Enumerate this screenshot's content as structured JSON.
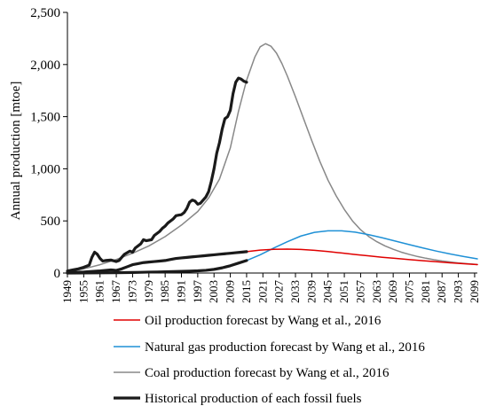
{
  "chart_data": {
    "type": "line",
    "title": "",
    "ylabel": "Annual production [mtoe]",
    "xlabel": "",
    "ylim": [
      0,
      2500
    ],
    "xlim": [
      1949,
      2100
    ],
    "y_ticks": [
      0,
      500,
      1000,
      1500,
      2000,
      2500
    ],
    "y_tick_labels": [
      "0",
      "500",
      "1,000",
      "1,500",
      "2,000",
      "2,500"
    ],
    "x_tick_labels": [
      "1949",
      "1955",
      "1961",
      "1967",
      "1973",
      "1979",
      "1985",
      "1991",
      "1997",
      "2003",
      "2009",
      "2015",
      "2021",
      "2027",
      "2033",
      "2039",
      "2045",
      "2051",
      "2057",
      "2063",
      "2069",
      "2075",
      "2081",
      "2087",
      "2093",
      "2099"
    ],
    "grid": false,
    "legend_position": "bottom",
    "series": [
      {
        "name": "Oil production forecast by Wang et al., 2016",
        "color": "#e00000",
        "style": "thin",
        "points": [
          [
            2015,
            205
          ],
          [
            2020,
            220
          ],
          [
            2025,
            228
          ],
          [
            2030,
            230
          ],
          [
            2035,
            226
          ],
          [
            2040,
            218
          ],
          [
            2045,
            206
          ],
          [
            2050,
            192
          ],
          [
            2055,
            178
          ],
          [
            2060,
            165
          ],
          [
            2065,
            151
          ],
          [
            2070,
            140
          ],
          [
            2075,
            129
          ],
          [
            2080,
            118
          ],
          [
            2085,
            108
          ],
          [
            2090,
            98
          ],
          [
            2095,
            89
          ],
          [
            2100,
            81
          ]
        ]
      },
      {
        "name": "Natural gas production forecast by Wang et al., 2016",
        "color": "#1e90d6",
        "style": "thin",
        "points": [
          [
            2015,
            120
          ],
          [
            2020,
            175
          ],
          [
            2025,
            240
          ],
          [
            2030,
            300
          ],
          [
            2035,
            355
          ],
          [
            2040,
            390
          ],
          [
            2045,
            405
          ],
          [
            2050,
            405
          ],
          [
            2055,
            392
          ],
          [
            2060,
            368
          ],
          [
            2065,
            338
          ],
          [
            2070,
            305
          ],
          [
            2075,
            272
          ],
          [
            2080,
            240
          ],
          [
            2085,
            210
          ],
          [
            2090,
            183
          ],
          [
            2095,
            158
          ],
          [
            2100,
            136
          ]
        ]
      },
      {
        "name": "Coal production forecast by Wang et al., 2016",
        "color": "#888888",
        "style": "thin",
        "points": [
          [
            1949,
            15
          ],
          [
            1955,
            40
          ],
          [
            1961,
            80
          ],
          [
            1967,
            130
          ],
          [
            1973,
            190
          ],
          [
            1979,
            260
          ],
          [
            1985,
            350
          ],
          [
            1991,
            460
          ],
          [
            1997,
            590
          ],
          [
            2001,
            720
          ],
          [
            2005,
            900
          ],
          [
            2009,
            1200
          ],
          [
            2012,
            1550
          ],
          [
            2015,
            1850
          ],
          [
            2018,
            2070
          ],
          [
            2020,
            2170
          ],
          [
            2022,
            2200
          ],
          [
            2024,
            2175
          ],
          [
            2026,
            2110
          ],
          [
            2028,
            2010
          ],
          [
            2030,
            1890
          ],
          [
            2033,
            1690
          ],
          [
            2036,
            1480
          ],
          [
            2039,
            1270
          ],
          [
            2042,
            1070
          ],
          [
            2045,
            890
          ],
          [
            2048,
            740
          ],
          [
            2051,
            610
          ],
          [
            2054,
            500
          ],
          [
            2057,
            415
          ],
          [
            2060,
            350
          ],
          [
            2063,
            300
          ],
          [
            2066,
            260
          ],
          [
            2069,
            228
          ],
          [
            2072,
            200
          ],
          [
            2075,
            178
          ],
          [
            2078,
            158
          ],
          [
            2081,
            142
          ],
          [
            2084,
            128
          ],
          [
            2087,
            116
          ],
          [
            2090,
            106
          ],
          [
            2093,
            97
          ],
          [
            2096,
            90
          ],
          [
            2100,
            82
          ]
        ]
      },
      {
        "name": "Historical production of each fossil fuels",
        "color": "#1a1a1a",
        "style": "thick",
        "lines": [
          [
            [
              1949,
              20
            ],
            [
              1951,
              30
            ],
            [
              1953,
              40
            ],
            [
              1955,
              55
            ],
            [
              1957,
              75
            ],
            [
              1958,
              150
            ],
            [
              1959,
              200
            ],
            [
              1960,
              180
            ],
            [
              1961,
              140
            ],
            [
              1962,
              115
            ],
            [
              1963,
              120
            ],
            [
              1965,
              125
            ],
            [
              1967,
              110
            ],
            [
              1968,
              120
            ],
            [
              1969,
              150
            ],
            [
              1970,
              180
            ],
            [
              1972,
              210
            ],
            [
              1973,
              200
            ],
            [
              1974,
              240
            ],
            [
              1976,
              280
            ],
            [
              1977,
              320
            ],
            [
              1978,
              310
            ],
            [
              1980,
              320
            ],
            [
              1981,
              360
            ],
            [
              1983,
              400
            ],
            [
              1984,
              430
            ],
            [
              1985,
              450
            ],
            [
              1986,
              480
            ],
            [
              1988,
              520
            ],
            [
              1989,
              550
            ],
            [
              1990,
              555
            ],
            [
              1991,
              560
            ],
            [
              1992,
              580
            ],
            [
              1993,
              620
            ],
            [
              1994,
              680
            ],
            [
              1995,
              700
            ],
            [
              1996,
              690
            ],
            [
              1997,
              660
            ],
            [
              1998,
              670
            ],
            [
              1999,
              700
            ],
            [
              2000,
              730
            ],
            [
              2001,
              780
            ],
            [
              2002,
              880
            ],
            [
              2003,
              1000
            ],
            [
              2004,
              1150
            ],
            [
              2005,
              1250
            ],
            [
              2006,
              1380
            ],
            [
              2007,
              1480
            ],
            [
              2008,
              1500
            ],
            [
              2009,
              1560
            ],
            [
              2010,
              1720
            ],
            [
              2011,
              1830
            ],
            [
              2012,
              1870
            ],
            [
              2013,
              1860
            ],
            [
              2014,
              1840
            ],
            [
              2015,
              1830
            ]
          ],
          [
            [
              1949,
              5
            ],
            [
              1955,
              10
            ],
            [
              1961,
              20
            ],
            [
              1965,
              30
            ],
            [
              1967,
              25
            ],
            [
              1969,
              40
            ],
            [
              1971,
              60
            ],
            [
              1973,
              80
            ],
            [
              1975,
              90
            ],
            [
              1977,
              100
            ],
            [
              1979,
              105
            ],
            [
              1981,
              110
            ],
            [
              1983,
              115
            ],
            [
              1985,
              120
            ],
            [
              1987,
              130
            ],
            [
              1989,
              140
            ],
            [
              1991,
              145
            ],
            [
              1993,
              150
            ],
            [
              1995,
              155
            ],
            [
              1997,
              160
            ],
            [
              1999,
              165
            ],
            [
              2001,
              170
            ],
            [
              2003,
              175
            ],
            [
              2005,
              180
            ],
            [
              2007,
              185
            ],
            [
              2009,
              190
            ],
            [
              2011,
              195
            ],
            [
              2013,
              200
            ],
            [
              2015,
              205
            ]
          ],
          [
            [
              1949,
              0
            ],
            [
              1955,
              1
            ],
            [
              1961,
              2
            ],
            [
              1967,
              3
            ],
            [
              1970,
              4
            ],
            [
              1973,
              5
            ],
            [
              1976,
              7
            ],
            [
              1979,
              9
            ],
            [
              1982,
              10
            ],
            [
              1985,
              12
            ],
            [
              1988,
              14
            ],
            [
              1991,
              16
            ],
            [
              1994,
              18
            ],
            [
              1997,
              21
            ],
            [
              2000,
              26
            ],
            [
              2003,
              35
            ],
            [
              2006,
              50
            ],
            [
              2009,
              70
            ],
            [
              2012,
              95
            ],
            [
              2015,
              120
            ]
          ]
        ]
      }
    ]
  }
}
